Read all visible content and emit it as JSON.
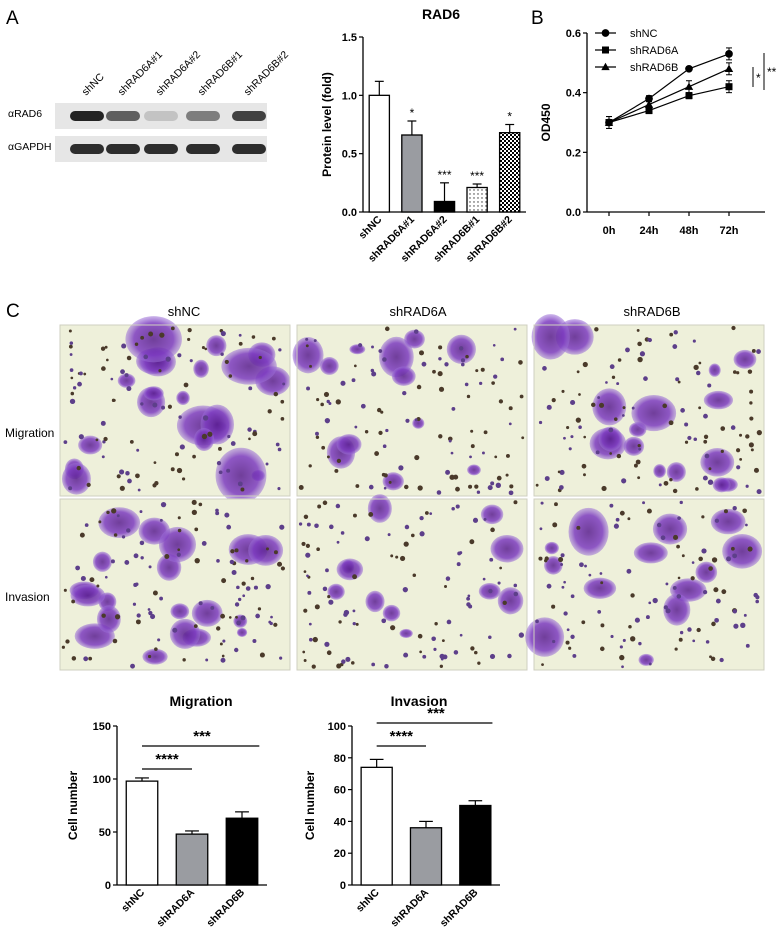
{
  "panels": {
    "A": "A",
    "B": "B",
    "C": "C"
  },
  "western_blot": {
    "lanes": [
      "shNC",
      "shRAD6A#1",
      "shRAD6A#2",
      "shRAD6B#1",
      "shRAD6B#2"
    ],
    "rows": [
      "αRAD6",
      "αGAPDH"
    ],
    "rad6_intensity": [
      1.0,
      0.7,
      0.2,
      0.55,
      0.85
    ]
  },
  "section_c": {
    "columns": [
      "shNC",
      "shRAD6A",
      "shRAD6B"
    ],
    "rows": [
      "Migration",
      "Invasion"
    ],
    "stain_density": [
      [
        0.85,
        0.35,
        0.55
      ],
      [
        0.7,
        0.25,
        0.4
      ]
    ]
  },
  "chart_data": [
    {
      "id": "rad6",
      "type": "bar",
      "title": "RAD6",
      "ylabel": "Protein level (fold)",
      "ylim": [
        0,
        1.5
      ],
      "yticks": [
        "0.0",
        "0.5",
        "1.0",
        "1.5"
      ],
      "categories": [
        "shNC",
        "shRAD6A#1",
        "shRAD6A#2",
        "shRAD6B#1",
        "shRAD6B#2"
      ],
      "values": [
        1.0,
        0.66,
        0.09,
        0.21,
        0.68
      ],
      "errors": [
        0.12,
        0.12,
        0.16,
        0.03,
        0.07
      ],
      "fills": [
        "white",
        "#9a9ca1",
        "black",
        "dots",
        "checker"
      ],
      "significance": [
        "",
        "*",
        "***",
        "***",
        "*"
      ]
    },
    {
      "id": "od450",
      "type": "line",
      "ylabel": "OD450",
      "ylim": [
        0,
        0.6
      ],
      "yticks": [
        "0.0",
        "0.2",
        "0.4",
        "0.6"
      ],
      "x": [
        "0h",
        "24h",
        "48h",
        "72h"
      ],
      "series": [
        {
          "name": "shNC",
          "marker": "circle",
          "values": [
            0.3,
            0.38,
            0.48,
            0.53
          ],
          "errors": [
            0.02,
            0.01,
            0.005,
            0.02
          ]
        },
        {
          "name": "shRAD6A",
          "marker": "square",
          "values": [
            0.3,
            0.34,
            0.39,
            0.42
          ],
          "errors": [
            0.02,
            0.01,
            0.01,
            0.02
          ]
        },
        {
          "name": "shRAD6B",
          "marker": "triangle",
          "values": [
            0.3,
            0.36,
            0.42,
            0.48
          ],
          "errors": [
            0.02,
            0.01,
            0.02,
            0.02
          ]
        }
      ],
      "significance": [
        "*",
        "**"
      ]
    },
    {
      "id": "migration",
      "type": "bar",
      "title": "Migration",
      "ylabel": "Cell number",
      "ylim": [
        0,
        150
      ],
      "yticks": [
        "0",
        "50",
        "100",
        "150"
      ],
      "categories": [
        "shNC",
        "shRAD6A",
        "shRAD6B"
      ],
      "values": [
        98,
        48,
        63
      ],
      "errors": [
        3,
        3,
        6
      ],
      "fills": [
        "white",
        "#9a9ca1",
        "black"
      ],
      "comparisons": [
        {
          "label": "****",
          "from": "shNC",
          "to": "shRAD6A"
        },
        {
          "label": "***",
          "from": "shNC",
          "to": "shRAD6B"
        }
      ]
    },
    {
      "id": "invasion",
      "type": "bar",
      "title": "Invasion",
      "ylabel": "Cell number",
      "ylim": [
        0,
        100
      ],
      "yticks": [
        "0",
        "20",
        "40",
        "60",
        "80",
        "100"
      ],
      "categories": [
        "shNC",
        "shRAD6A",
        "shRAD6B"
      ],
      "values": [
        74,
        36,
        50
      ],
      "errors": [
        5,
        4,
        3
      ],
      "fills": [
        "white",
        "#9a9ca1",
        "black"
      ],
      "comparisons": [
        {
          "label": "****",
          "from": "shNC",
          "to": "shRAD6A"
        },
        {
          "label": "***",
          "from": "shNC",
          "to": "shRAD6B"
        }
      ]
    }
  ]
}
